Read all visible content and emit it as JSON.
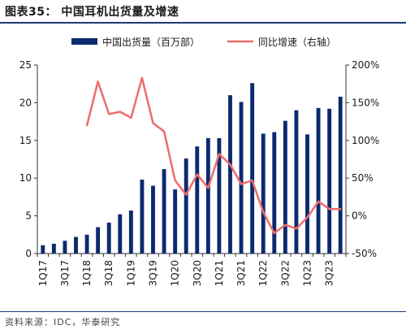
{
  "figure_title": "图表35：  中国耳机出货量及增速",
  "source_note": "资料来源：IDC，华泰研究",
  "colors": {
    "bar": "#0b2a6f",
    "line": "#f06b6b",
    "rule": "#1f3a73",
    "axis": "#333333"
  },
  "chart_data": {
    "type": "bar+line",
    "title": "",
    "categories": [
      "1Q17",
      "2Q17",
      "3Q17",
      "4Q17",
      "1Q18",
      "2Q18",
      "3Q18",
      "4Q18",
      "1Q19",
      "2Q19",
      "3Q19",
      "4Q19",
      "1Q20",
      "2Q20",
      "3Q20",
      "4Q20",
      "1Q21",
      "2Q21",
      "3Q21",
      "4Q21",
      "1Q22",
      "2Q22",
      "3Q22",
      "4Q22",
      "1Q23",
      "2Q23",
      "3Q23",
      "4Q23"
    ],
    "tick_labels": [
      "1Q17",
      "3Q17",
      "1Q18",
      "3Q18",
      "1Q19",
      "3Q19",
      "1Q20",
      "3Q20",
      "1Q21",
      "3Q21",
      "1Q22",
      "3Q22",
      "1Q23",
      "3Q23"
    ],
    "series": [
      {
        "name": "中国出货量（百万部）",
        "type": "bar",
        "axis": "left",
        "values": [
          1.1,
          1.3,
          1.7,
          2.2,
          2.5,
          3.5,
          4.1,
          5.2,
          5.7,
          9.8,
          9.0,
          11.2,
          8.5,
          12.6,
          14.2,
          15.3,
          15.3,
          21.0,
          20.1,
          22.6,
          15.9,
          16.1,
          17.6,
          19.0,
          15.8,
          19.3,
          19.2,
          20.8
        ]
      },
      {
        "name": "同比增速（右轴）",
        "type": "line",
        "axis": "right",
        "values": [
          null,
          null,
          null,
          null,
          120,
          178,
          135,
          138,
          130,
          183,
          123,
          112,
          47,
          28,
          55,
          37,
          82,
          68,
          42,
          47,
          5,
          -23,
          -12,
          -17,
          -2,
          19,
          9,
          9
        ]
      }
    ],
    "y_left": {
      "ylim": [
        0,
        25
      ],
      "ticks": [
        0,
        5,
        10,
        15,
        20,
        25
      ]
    },
    "y_right": {
      "ylim": [
        -50,
        200
      ],
      "ticks": [
        "-50%",
        "0%",
        "50%",
        "100%",
        "150%",
        "200%"
      ]
    },
    "legend": "top",
    "grid": false
  }
}
